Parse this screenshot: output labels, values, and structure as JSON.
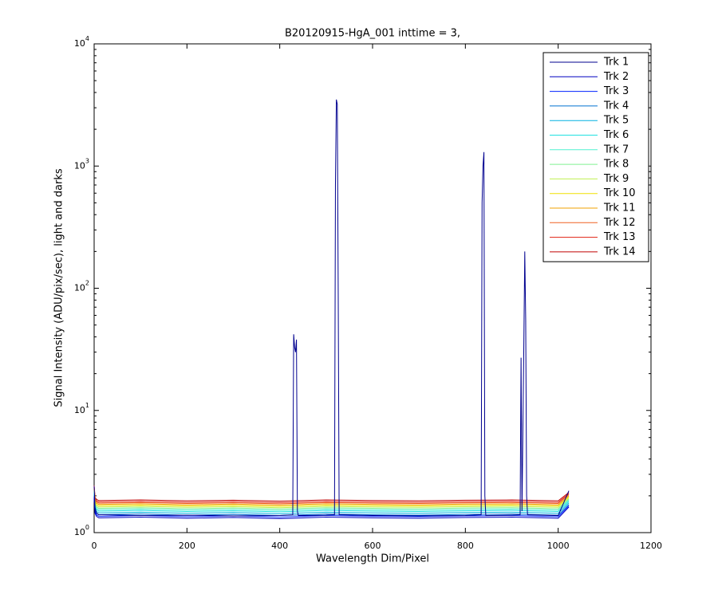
{
  "chart_data": {
    "type": "line",
    "title": "B20120915-HgA_001 inttime = 3,",
    "xlabel": "Wavelength Dim/Pixel",
    "ylabel": "Signal Intensity (ADU/pix/sec), light and darks",
    "yscale": "log",
    "xlim": [
      0,
      1200
    ],
    "xticks": [
      0,
      200,
      400,
      600,
      800,
      1000,
      1200
    ],
    "ylim": [
      1,
      10000
    ],
    "yticks": [
      {
        "value": 1,
        "label": "10^0"
      },
      {
        "value": 10,
        "label": "10^1"
      },
      {
        "value": 100,
        "label": "10^2"
      },
      {
        "value": 1000,
        "label": "10^3"
      },
      {
        "value": 10000,
        "label": "10^4"
      }
    ],
    "legend": "top-right",
    "x": [
      0,
      2,
      5,
      10,
      100,
      200,
      300,
      400,
      500,
      600,
      700,
      800,
      900,
      1000,
      1023
    ],
    "series": [
      {
        "name": "Trk 1",
        "color": "#00008f",
        "x": [
          0,
          2,
          5,
          10,
          100,
          200,
          300,
          400,
          428,
          430,
          432,
          434,
          436,
          438,
          440,
          500,
          518,
          520,
          522,
          524,
          526,
          528,
          600,
          700,
          800,
          834,
          836,
          838,
          840,
          842,
          844,
          900,
          918,
          920,
          922,
          926,
          928,
          930,
          932,
          934,
          1000,
          1023
        ],
        "values": [
          2.4,
          1.6,
          1.45,
          1.4,
          1.38,
          1.39,
          1.37,
          1.38,
          1.4,
          42,
          33,
          30,
          38,
          1.5,
          1.38,
          1.39,
          1.4,
          700,
          3500,
          3200,
          90,
          1.4,
          1.38,
          1.37,
          1.38,
          1.4,
          500,
          1000,
          1300,
          2,
          1.38,
          1.39,
          1.4,
          27,
          1.5,
          35,
          200,
          55,
          2,
          1.4,
          1.38,
          2.2
        ]
      },
      {
        "name": "Trk 2",
        "color": "#0000c0",
        "values": [
          1.92,
          1.44,
          1.36,
          1.32,
          1.34,
          1.31,
          1.33,
          1.3,
          1.34,
          1.32,
          1.31,
          1.33,
          1.34,
          1.31,
          1.62
        ]
      },
      {
        "name": "Trk 3",
        "color": "#0020ff",
        "values": [
          1.96,
          1.48,
          1.4,
          1.36,
          1.38,
          1.35,
          1.37,
          1.34,
          1.38,
          1.36,
          1.35,
          1.37,
          1.38,
          1.35,
          1.66
        ]
      },
      {
        "name": "Trk 4",
        "color": "#0070d0",
        "values": [
          2.0,
          1.52,
          1.44,
          1.4,
          1.42,
          1.39,
          1.41,
          1.38,
          1.42,
          1.4,
          1.39,
          1.41,
          1.42,
          1.39,
          1.7
        ]
      },
      {
        "name": "Trk 5",
        "color": "#00b0e0",
        "values": [
          2.05,
          1.57,
          1.49,
          1.45,
          1.47,
          1.44,
          1.46,
          1.43,
          1.47,
          1.45,
          1.44,
          1.46,
          1.47,
          1.44,
          1.75
        ]
      },
      {
        "name": "Trk 6",
        "color": "#20e0e0",
        "values": [
          2.1,
          1.62,
          1.54,
          1.5,
          1.52,
          1.49,
          1.51,
          1.48,
          1.52,
          1.5,
          1.49,
          1.51,
          1.52,
          1.49,
          1.8
        ]
      },
      {
        "name": "Trk 7",
        "color": "#50f0d0",
        "values": [
          2.14,
          1.66,
          1.58,
          1.54,
          1.56,
          1.53,
          1.55,
          1.52,
          1.56,
          1.54,
          1.53,
          1.55,
          1.56,
          1.53,
          1.84
        ]
      },
      {
        "name": "Trk 8",
        "color": "#80f090",
        "values": [
          2.18,
          1.7,
          1.62,
          1.58,
          1.6,
          1.57,
          1.59,
          1.56,
          1.6,
          1.58,
          1.57,
          1.59,
          1.6,
          1.57,
          1.88
        ]
      },
      {
        "name": "Trk 9",
        "color": "#c0f050",
        "values": [
          2.22,
          1.74,
          1.66,
          1.62,
          1.64,
          1.61,
          1.63,
          1.6,
          1.64,
          1.62,
          1.61,
          1.63,
          1.64,
          1.61,
          1.92
        ]
      },
      {
        "name": "Trk 10",
        "color": "#f0e000",
        "values": [
          2.26,
          1.78,
          1.7,
          1.66,
          1.68,
          1.65,
          1.67,
          1.64,
          1.68,
          1.66,
          1.65,
          1.67,
          1.68,
          1.65,
          1.96
        ]
      },
      {
        "name": "Trk 11",
        "color": "#f0a000",
        "values": [
          2.3,
          1.82,
          1.74,
          1.7,
          1.72,
          1.69,
          1.71,
          1.68,
          1.72,
          1.7,
          1.69,
          1.71,
          1.72,
          1.69,
          2.0
        ]
      },
      {
        "name": "Trk 12",
        "color": "#f06020",
        "values": [
          2.34,
          1.86,
          1.78,
          1.74,
          1.76,
          1.73,
          1.75,
          1.72,
          1.76,
          1.74,
          1.73,
          1.75,
          1.76,
          1.73,
          2.04
        ]
      },
      {
        "name": "Trk 13",
        "color": "#e02010",
        "values": [
          2.38,
          1.9,
          1.82,
          1.78,
          1.8,
          1.77,
          1.79,
          1.76,
          1.8,
          1.78,
          1.77,
          1.79,
          1.8,
          1.77,
          2.08
        ]
      },
      {
        "name": "Trk 14",
        "color": "#c00000",
        "values": [
          2.43,
          1.95,
          1.87,
          1.83,
          1.85,
          1.82,
          1.84,
          1.81,
          1.85,
          1.83,
          1.82,
          1.84,
          1.85,
          1.82,
          2.13
        ]
      }
    ]
  }
}
